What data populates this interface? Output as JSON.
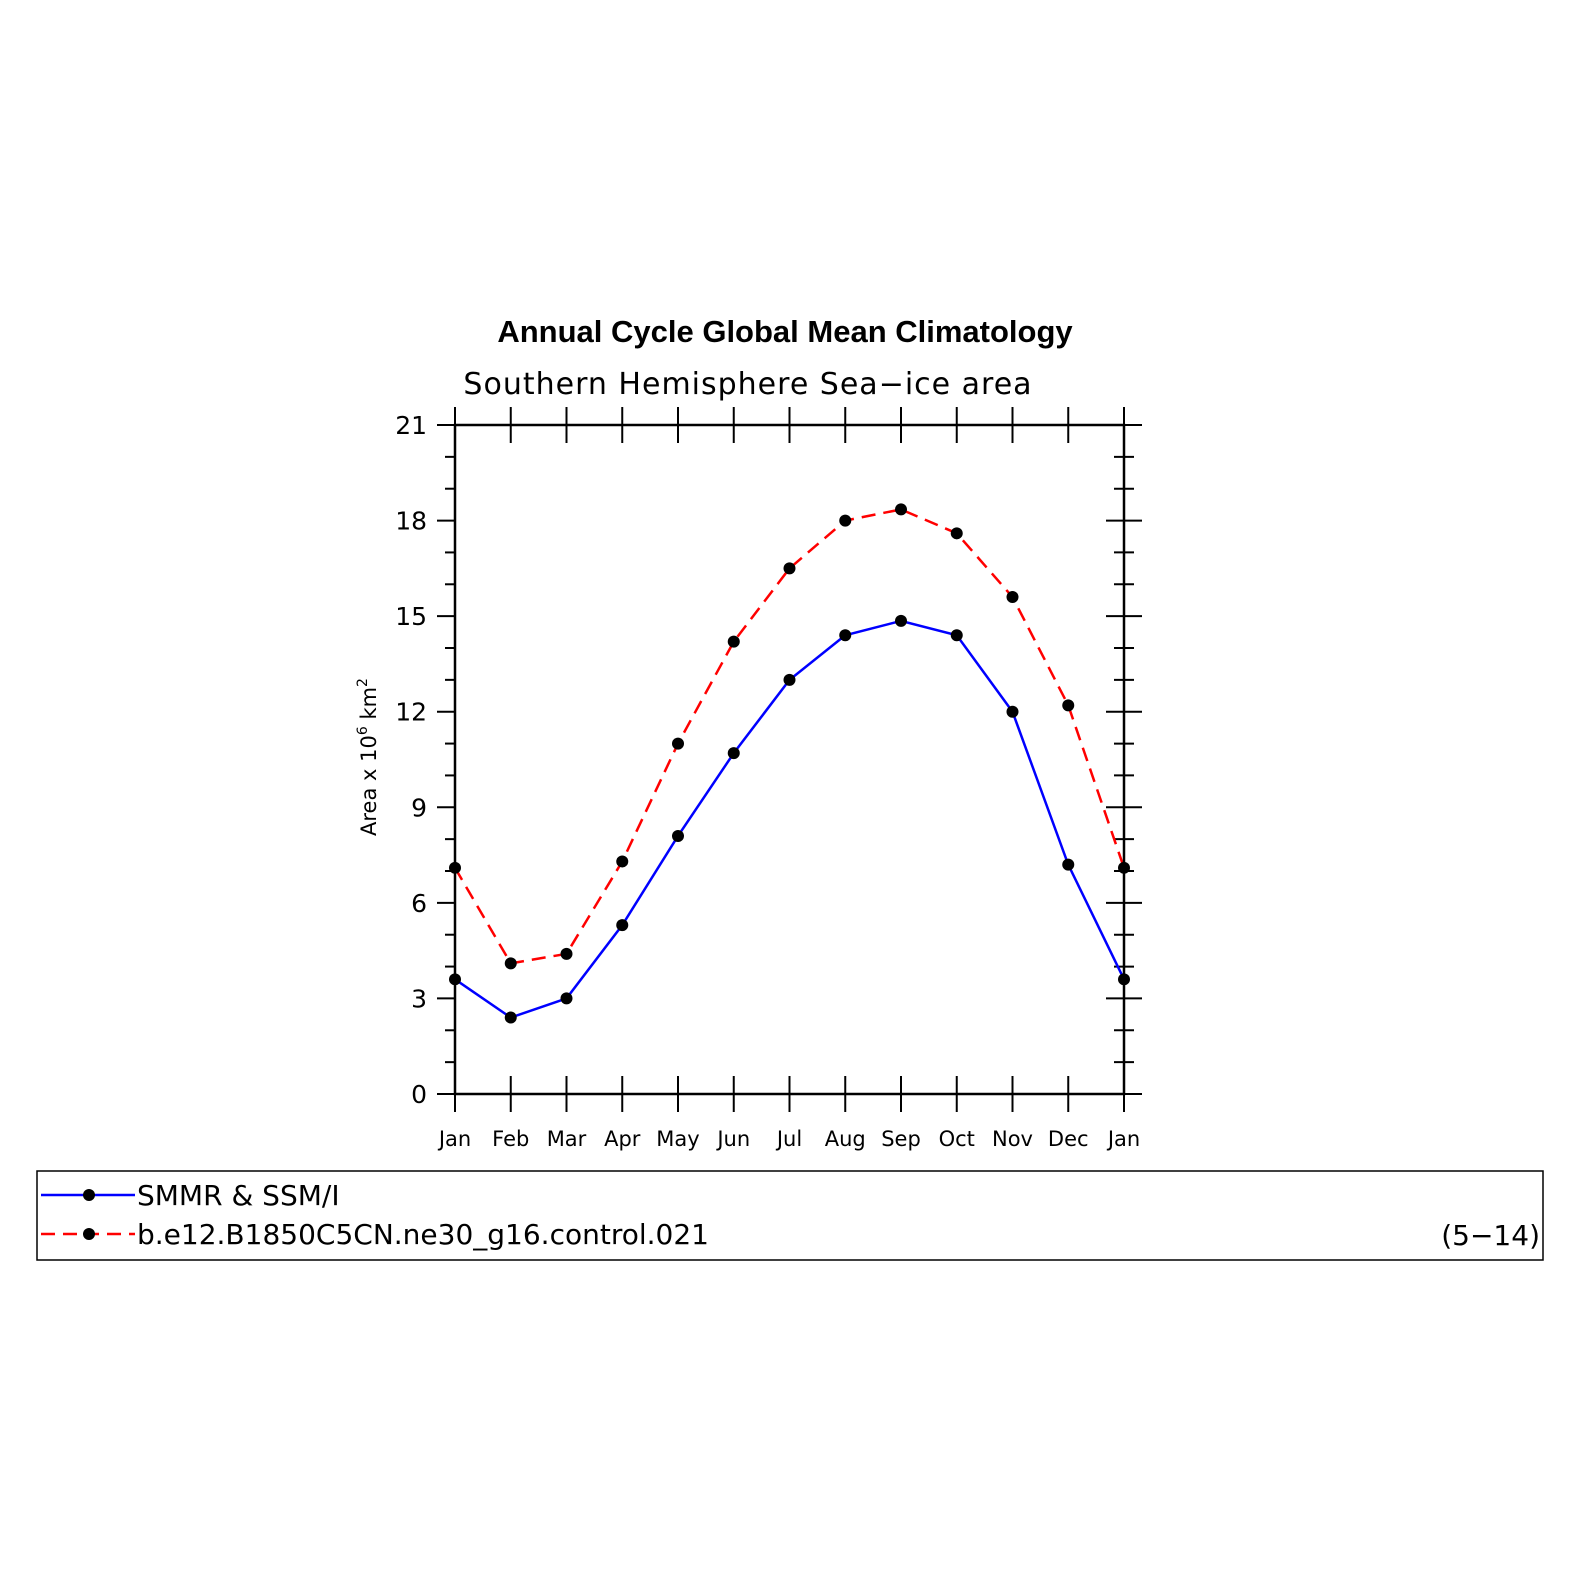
{
  "chart_data": {
    "type": "line",
    "title": "Annual Cycle Global Mean Climatology",
    "subtitle": "Southern Hemisphere Sea−ice area",
    "ylabel": "Area x 10",
    "ylabel_sup1": "6",
    "ylabel_unit": " km",
    "ylabel_sup2": "2",
    "xlabel": "",
    "categories": [
      "Jan",
      "Feb",
      "Mar",
      "Apr",
      "May",
      "Jun",
      "Jul",
      "Aug",
      "Sep",
      "Oct",
      "Nov",
      "Dec",
      "Jan"
    ],
    "ylim": [
      0,
      21
    ],
    "yticks": [
      0,
      3,
      6,
      9,
      12,
      15,
      18,
      21
    ],
    "grid": false,
    "series": [
      {
        "name": "SMMR & SSM/I",
        "color": "#0000ff",
        "dash": "solid",
        "marker": "filled-circle",
        "values": [
          3.6,
          2.4,
          3.0,
          5.3,
          8.1,
          10.7,
          13.0,
          14.4,
          14.85,
          14.4,
          12.0,
          7.2,
          3.6
        ]
      },
      {
        "name": "b.e12.B1850C5CN.ne30_g16.control.021",
        "color": "#ff0000",
        "dash": "dashed",
        "marker": "filled-circle",
        "values": [
          7.1,
          4.1,
          4.4,
          7.3,
          11.0,
          14.2,
          16.5,
          18.0,
          18.35,
          17.6,
          15.6,
          12.2,
          7.1
        ]
      }
    ],
    "legend": {
      "placement": "bottom",
      "note": "(5−14)"
    }
  }
}
